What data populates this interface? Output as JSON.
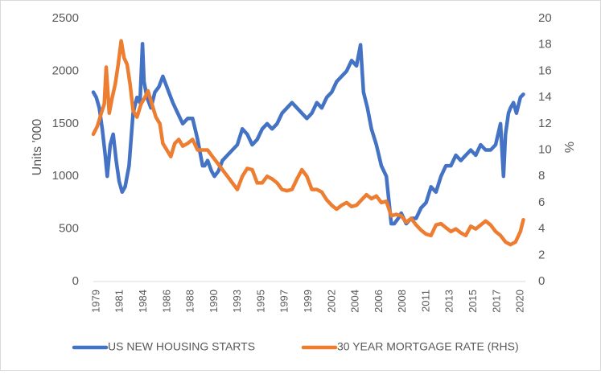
{
  "chart_data": {
    "type": "line",
    "title": "",
    "xlabel": "",
    "ylabel_left": "Units '000",
    "ylabel_right": "%",
    "ylim_left": [
      0,
      2500
    ],
    "ylim_right": [
      0,
      20
    ],
    "yticks_left": [
      "0",
      "500",
      "1000",
      "1500",
      "2000",
      "2500"
    ],
    "yticks_right": [
      "0",
      "2",
      "4",
      "6",
      "8",
      "10",
      "12",
      "14",
      "16",
      "18",
      "20"
    ],
    "xlim": [
      1979.0,
      2022.5
    ],
    "xticks": [
      "1979",
      "1981",
      "1984",
      "1986",
      "1988",
      "1990",
      "1993",
      "1995",
      "1997",
      "1999",
      "2002",
      "2004",
      "2006",
      "2008",
      "2011",
      "2013",
      "2015",
      "2017",
      "2020"
    ],
    "grid": false,
    "legend": "bottom",
    "series": [
      {
        "name": "US NEW HOUSING STARTS",
        "axis": "left",
        "color": "#4472c4",
        "x": [
          1979.0,
          1979.3,
          1979.6,
          1979.9,
          1980.2,
          1980.4,
          1980.7,
          1981.0,
          1981.3,
          1981.6,
          1981.9,
          1982.2,
          1982.6,
          1983.0,
          1983.4,
          1983.7,
          1983.95,
          1984.1,
          1984.4,
          1984.8,
          1985.2,
          1985.6,
          1986.0,
          1986.2,
          1986.6,
          1987.0,
          1987.5,
          1988.0,
          1988.5,
          1989.0,
          1989.5,
          1990.0,
          1990.2,
          1990.5,
          1990.9,
          1991.2,
          1991.6,
          1992.0,
          1992.5,
          1993.0,
          1993.5,
          1994.0,
          1994.5,
          1995.0,
          1995.5,
          1996.0,
          1996.5,
          1997.0,
          1997.5,
          1998.0,
          1998.5,
          1999.0,
          1999.5,
          2000.0,
          2000.5,
          2001.0,
          2001.5,
          2002.0,
          2002.5,
          2003.0,
          2003.5,
          2004.0,
          2004.5,
          2005.0,
          2005.5,
          2005.9,
          2006.2,
          2006.6,
          2007.0,
          2007.5,
          2008.0,
          2008.5,
          2009.0,
          2009.3,
          2009.7,
          2010.0,
          2010.5,
          2011.0,
          2011.5,
          2012.0,
          2012.5,
          2013.0,
          2013.5,
          2014.0,
          2014.5,
          2015.0,
          2015.5,
          2016.0,
          2016.5,
          2017.0,
          2017.5,
          2018.0,
          2018.5,
          2019.0,
          2019.5,
          2020.0,
          2020.3,
          2020.5,
          2020.8,
          2021.0,
          2021.3,
          2021.6,
          2022.0,
          2022.3
        ],
        "values": [
          1800,
          1750,
          1650,
          1450,
          1200,
          1000,
          1300,
          1400,
          1150,
          950,
          850,
          900,
          1100,
          1600,
          1750,
          1700,
          2260,
          1900,
          1750,
          1650,
          1800,
          1850,
          1950,
          1900,
          1800,
          1700,
          1600,
          1500,
          1550,
          1550,
          1350,
          1100,
          1100,
          1150,
          1050,
          1000,
          1050,
          1150,
          1200,
          1250,
          1300,
          1450,
          1400,
          1300,
          1350,
          1450,
          1500,
          1450,
          1500,
          1600,
          1650,
          1700,
          1650,
          1600,
          1550,
          1600,
          1700,
          1650,
          1750,
          1800,
          1900,
          1950,
          2000,
          2100,
          2050,
          2250,
          1800,
          1650,
          1450,
          1300,
          1100,
          1000,
          550,
          550,
          600,
          650,
          550,
          600,
          600,
          700,
          750,
          900,
          850,
          1000,
          1100,
          1100,
          1200,
          1150,
          1200,
          1250,
          1200,
          1300,
          1250,
          1250,
          1300,
          1500,
          1000,
          1400,
          1600,
          1650,
          1700,
          1600,
          1750,
          1780
        ]
      },
      {
        "name": "30 YEAR MORTGAGE RATE (RHS)",
        "axis": "right",
        "color": "#ed7d31",
        "x": [
          1979.0,
          1979.4,
          1979.8,
          1980.1,
          1980.3,
          1980.6,
          1980.9,
          1981.2,
          1981.5,
          1981.8,
          1982.1,
          1982.4,
          1982.7,
          1983.0,
          1983.4,
          1983.8,
          1984.2,
          1984.5,
          1984.9,
          1985.3,
          1985.7,
          1986.0,
          1986.4,
          1986.8,
          1987.2,
          1987.6,
          1988.0,
          1988.5,
          1989.0,
          1989.5,
          1990.0,
          1990.5,
          1991.0,
          1991.5,
          1992.0,
          1992.5,
          1993.0,
          1993.5,
          1994.0,
          1994.5,
          1995.0,
          1995.5,
          1996.0,
          1996.5,
          1997.0,
          1997.5,
          1998.0,
          1998.5,
          1999.0,
          1999.5,
          2000.0,
          2000.5,
          2001.0,
          2001.5,
          2002.0,
          2002.5,
          2003.0,
          2003.5,
          2004.0,
          2004.5,
          2005.0,
          2005.5,
          2006.0,
          2006.5,
          2007.0,
          2007.5,
          2008.0,
          2008.5,
          2009.0,
          2009.5,
          2010.0,
          2010.5,
          2011.0,
          2011.5,
          2012.0,
          2012.5,
          2013.0,
          2013.5,
          2014.0,
          2014.5,
          2015.0,
          2015.5,
          2016.0,
          2016.5,
          2017.0,
          2017.5,
          2018.0,
          2018.5,
          2019.0,
          2019.5,
          2020.0,
          2020.5,
          2021.0,
          2021.5,
          2022.0,
          2022.3
        ],
        "values": [
          11.2,
          11.8,
          12.8,
          13.5,
          16.3,
          12.8,
          14.0,
          15.0,
          16.5,
          18.3,
          17.0,
          16.5,
          15.0,
          13.0,
          12.5,
          13.5,
          14.0,
          14.5,
          13.5,
          12.5,
          12.0,
          10.5,
          10.0,
          9.5,
          10.5,
          10.8,
          10.3,
          10.5,
          10.8,
          10.0,
          10.0,
          10.0,
          9.5,
          9.0,
          8.5,
          8.0,
          7.5,
          7.0,
          8.0,
          8.6,
          8.5,
          7.5,
          7.5,
          8.0,
          7.8,
          7.5,
          7.0,
          6.9,
          7.0,
          7.8,
          8.5,
          8.0,
          7.0,
          7.0,
          6.8,
          6.2,
          5.8,
          5.5,
          5.8,
          6.0,
          5.7,
          5.8,
          6.2,
          6.6,
          6.3,
          6.5,
          6.0,
          6.1,
          5.0,
          5.1,
          5.0,
          4.5,
          4.8,
          4.3,
          3.9,
          3.6,
          3.5,
          4.3,
          4.4,
          4.1,
          3.8,
          4.0,
          3.7,
          3.5,
          4.2,
          4.0,
          4.3,
          4.6,
          4.3,
          3.8,
          3.5,
          3.0,
          2.8,
          3.0,
          3.8,
          4.7
        ]
      }
    ]
  }
}
